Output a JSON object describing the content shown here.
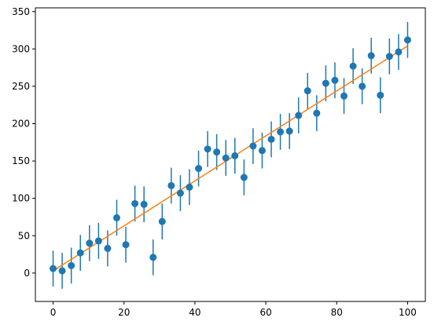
{
  "chart_data": {
    "type": "scatter",
    "title": "",
    "xlabel": "",
    "ylabel": "",
    "xlim": [
      -5,
      105
    ],
    "ylim": [
      -38,
      355
    ],
    "xticks": [
      0,
      20,
      40,
      60,
      80,
      100
    ],
    "yticks": [
      0,
      50,
      100,
      150,
      200,
      250,
      300,
      350
    ],
    "grid": false,
    "legend": "none",
    "series": [
      {
        "kind": "errorbar",
        "marker": "circle",
        "color": "#1f77b4",
        "x": [
          0,
          2.56,
          5.13,
          7.69,
          10.26,
          12.82,
          15.38,
          17.95,
          20.51,
          23.08,
          25.64,
          28.21,
          30.77,
          33.33,
          35.9,
          38.46,
          41.03,
          43.59,
          46.15,
          48.72,
          51.28,
          53.85,
          56.41,
          58.97,
          61.54,
          64.1,
          66.67,
          69.23,
          71.79,
          74.36,
          76.92,
          79.49,
          82.05,
          84.62,
          87.18,
          89.74,
          92.31,
          94.87,
          97.44,
          100
        ],
        "y": [
          6,
          3,
          10,
          27,
          40,
          43,
          33,
          74,
          38,
          93,
          92,
          21,
          69,
          117,
          107,
          115,
          140,
          166,
          162,
          154,
          157,
          128,
          170,
          164,
          179,
          189,
          190,
          211,
          244,
          214,
          254,
          258,
          237,
          277,
          250,
          291,
          238,
          290,
          296,
          312
        ],
        "yerr": 24
      },
      {
        "kind": "line",
        "color": "#ff7f0e",
        "x": [
          0,
          100
        ],
        "y": [
          3,
          304
        ]
      }
    ]
  }
}
